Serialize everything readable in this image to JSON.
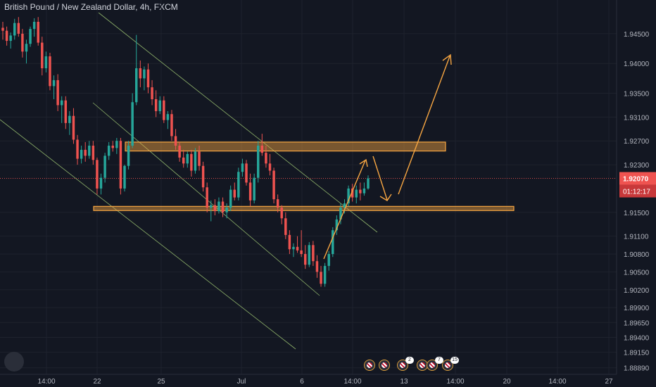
{
  "header": {
    "symbol_title": "British Pound / New Zealand Dollar, 4h, FXCM"
  },
  "price_tag": {
    "last_price": "1.92070",
    "countdown": "01:12:17",
    "color": "#ef5350"
  },
  "events": [
    {
      "name": "event-uk",
      "badge": ""
    },
    {
      "name": "event-nz",
      "badge": ""
    },
    {
      "name": "event-uk-2",
      "badge": "2"
    },
    {
      "name": "event-uk-3",
      "badge": ""
    },
    {
      "name": "event-uk-4",
      "badge": "7"
    },
    {
      "name": "event-uk-5",
      "badge": "15"
    }
  ],
  "chart_data": {
    "type": "candlestick",
    "title": "British Pound / New Zealand Dollar, 4h, FXCM",
    "y_ticks": [
      "1.94500",
      "1.94000",
      "1.93500",
      "1.93100",
      "1.92700",
      "1.92300",
      "1.91500",
      "1.91100",
      "1.90800",
      "1.90500",
      "1.90200",
      "1.89900",
      "1.89650",
      "1.89400",
      "1.89150",
      "1.88890"
    ],
    "x_ticks": [
      "14:00",
      "22",
      "25",
      "Jul",
      "6",
      "14:00",
      "13",
      "14:00",
      "20",
      "14:00",
      "27"
    ],
    "ylim": [
      1.8885,
      1.9483
    ],
    "grid": true,
    "colors": {
      "up": "#26a69a",
      "down": "#ef5350",
      "annotation": "#f7a642",
      "background": "#131722"
    },
    "last_price": 1.9207,
    "annotations": {
      "resistance_zone": [
        1.9253,
        1.9268
      ],
      "support_zone": [
        1.9153,
        1.916
      ]
    },
    "ohlc": [
      [
        1.946,
        1.947,
        1.944,
        1.9455
      ],
      [
        1.9455,
        1.9462,
        1.943,
        1.9438
      ],
      [
        1.9438,
        1.9452,
        1.9425,
        1.9447
      ],
      [
        1.9447,
        1.9475,
        1.944,
        1.9468
      ],
      [
        1.9468,
        1.9478,
        1.9445,
        1.945
      ],
      [
        1.945,
        1.9458,
        1.941,
        1.942
      ],
      [
        1.942,
        1.944,
        1.94,
        1.9433
      ],
      [
        1.9433,
        1.9462,
        1.9428,
        1.9458
      ],
      [
        1.9458,
        1.9476,
        1.9445,
        1.947
      ],
      [
        1.947,
        1.9478,
        1.943,
        1.9435
      ],
      [
        1.9435,
        1.9445,
        1.938,
        1.9392
      ],
      [
        1.9392,
        1.942,
        1.9385,
        1.9412
      ],
      [
        1.9412,
        1.9418,
        1.9355,
        1.9362
      ],
      [
        1.9362,
        1.938,
        1.934,
        1.9372
      ],
      [
        1.9372,
        1.9382,
        1.932,
        1.933
      ],
      [
        1.933,
        1.9345,
        1.93,
        1.9338
      ],
      [
        1.9338,
        1.9345,
        1.929,
        1.93
      ],
      [
        1.93,
        1.932,
        1.928,
        1.9312
      ],
      [
        1.9312,
        1.9325,
        1.9265,
        1.9272
      ],
      [
        1.9272,
        1.928,
        1.923,
        1.924
      ],
      [
        1.924,
        1.9262,
        1.9232,
        1.9255
      ],
      [
        1.9255,
        1.9268,
        1.9235,
        1.9245
      ],
      [
        1.9245,
        1.927,
        1.924,
        1.9262
      ],
      [
        1.9262,
        1.927,
        1.923,
        1.9238
      ],
      [
        1.9238,
        1.9242,
        1.918,
        1.919
      ],
      [
        1.919,
        1.9215,
        1.918,
        1.9208
      ],
      [
        1.9208,
        1.925,
        1.92,
        1.9245
      ],
      [
        1.9245,
        1.9268,
        1.9238,
        1.9262
      ],
      [
        1.9262,
        1.927,
        1.9252,
        1.9258
      ],
      [
        1.9258,
        1.9275,
        1.9248,
        1.927
      ],
      [
        1.927,
        1.9275,
        1.918,
        1.919
      ],
      [
        1.919,
        1.923,
        1.9185,
        1.9228
      ],
      [
        1.9228,
        1.927,
        1.9222,
        1.9262
      ],
      [
        1.9262,
        1.935,
        1.9258,
        1.9335
      ],
      [
        1.9335,
        1.9448,
        1.933,
        1.9392
      ],
      [
        1.9392,
        1.9405,
        1.936,
        1.9375
      ],
      [
        1.9375,
        1.9395,
        1.9355,
        1.939
      ],
      [
        1.939,
        1.94,
        1.935,
        1.936
      ],
      [
        1.936,
        1.9372,
        1.933,
        1.934
      ],
      [
        1.934,
        1.9355,
        1.931,
        1.932
      ],
      [
        1.932,
        1.9345,
        1.9315,
        1.9338
      ],
      [
        1.9338,
        1.9345,
        1.93,
        1.9305
      ],
      [
        1.9305,
        1.932,
        1.929,
        1.9315
      ],
      [
        1.9315,
        1.9322,
        1.927,
        1.9278
      ],
      [
        1.9278,
        1.929,
        1.9255,
        1.9262
      ],
      [
        1.9262,
        1.9268,
        1.9235,
        1.9242
      ],
      [
        1.9242,
        1.9255,
        1.9225,
        1.9232
      ],
      [
        1.9232,
        1.9252,
        1.9225,
        1.9248
      ],
      [
        1.9248,
        1.9255,
        1.921,
        1.922
      ],
      [
        1.922,
        1.9258,
        1.9215,
        1.9252
      ],
      [
        1.9252,
        1.9262,
        1.922,
        1.9228
      ],
      [
        1.9228,
        1.9235,
        1.9185,
        1.9192
      ],
      [
        1.9192,
        1.92,
        1.915,
        1.9158
      ],
      [
        1.9158,
        1.917,
        1.9135,
        1.9162
      ],
      [
        1.9162,
        1.9172,
        1.9145,
        1.9152
      ],
      [
        1.9152,
        1.9175,
        1.9148,
        1.9168
      ],
      [
        1.9168,
        1.9175,
        1.9142,
        1.915
      ],
      [
        1.915,
        1.9165,
        1.914,
        1.9158
      ],
      [
        1.9158,
        1.9195,
        1.9152,
        1.9188
      ],
      [
        1.9188,
        1.92,
        1.917,
        1.9175
      ],
      [
        1.9175,
        1.9225,
        1.917,
        1.9218
      ],
      [
        1.9218,
        1.924,
        1.921,
        1.9232
      ],
      [
        1.9232,
        1.9238,
        1.9195,
        1.92
      ],
      [
        1.92,
        1.9215,
        1.916,
        1.917
      ],
      [
        1.917,
        1.9215,
        1.9165,
        1.9208
      ],
      [
        1.9208,
        1.927,
        1.92,
        1.9262
      ],
      [
        1.9262,
        1.9282,
        1.9245,
        1.925
      ],
      [
        1.925,
        1.9262,
        1.9225,
        1.9232
      ],
      [
        1.9232,
        1.9248,
        1.9212,
        1.922
      ],
      [
        1.922,
        1.9225,
        1.9165,
        1.9172
      ],
      [
        1.9172,
        1.918,
        1.915,
        1.9158
      ],
      [
        1.9158,
        1.9162,
        1.913,
        1.914
      ],
      [
        1.914,
        1.915,
        1.9105,
        1.9112
      ],
      [
        1.9112,
        1.912,
        1.908,
        1.9088
      ],
      [
        1.9088,
        1.9098,
        1.9075,
        1.9092
      ],
      [
        1.9092,
        1.911,
        1.9082,
        1.9086
      ],
      [
        1.9086,
        1.912,
        1.9075,
        1.908
      ],
      [
        1.908,
        1.9095,
        1.9055,
        1.9062
      ],
      [
        1.9062,
        1.91,
        1.9058,
        1.9095
      ],
      [
        1.9095,
        1.9102,
        1.906,
        1.9068
      ],
      [
        1.9068,
        1.9078,
        1.904,
        1.905
      ],
      [
        1.905,
        1.906,
        1.9025,
        1.903
      ],
      [
        1.903,
        1.9065,
        1.9025,
        1.906
      ],
      [
        1.906,
        1.9085,
        1.9052,
        1.908
      ],
      [
        1.908,
        1.9125,
        1.9075,
        1.912
      ],
      [
        1.912,
        1.9145,
        1.9112,
        1.9138
      ],
      [
        1.9138,
        1.9165,
        1.913,
        1.9158
      ],
      [
        1.9158,
        1.9172,
        1.9148,
        1.9165
      ],
      [
        1.9165,
        1.9195,
        1.916,
        1.919
      ],
      [
        1.919,
        1.9198,
        1.9168,
        1.9175
      ],
      [
        1.9175,
        1.9195,
        1.9165,
        1.9188
      ],
      [
        1.9188,
        1.92,
        1.917,
        1.9182
      ],
      [
        1.9182,
        1.92,
        1.9178,
        1.919
      ],
      [
        1.919,
        1.9212,
        1.9188,
        1.9207
      ]
    ]
  }
}
